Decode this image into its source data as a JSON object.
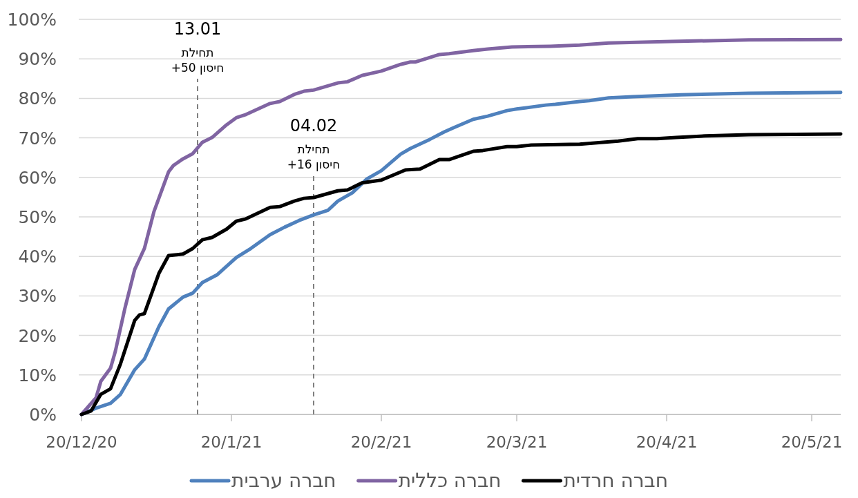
{
  "chart_data": {
    "type": "line",
    "xlim": [
      "2020-12-20",
      "2021-05-26"
    ],
    "xticks": [
      {
        "value": "2020-12-20",
        "label": "20/12/20"
      },
      {
        "value": "2021-01-20",
        "label": "20/1/21"
      },
      {
        "value": "2021-02-20",
        "label": "20/2/21"
      },
      {
        "value": "2021-03-20",
        "label": "20/3/21"
      },
      {
        "value": "2021-04-20",
        "label": "20/4/21"
      },
      {
        "value": "2021-05-20",
        "label": "20/5/21"
      }
    ],
    "ylim": [
      0,
      100
    ],
    "yticks": [
      {
        "value": 0,
        "label": "0%"
      },
      {
        "value": 10,
        "label": "10%"
      },
      {
        "value": 20,
        "label": "20%"
      },
      {
        "value": 30,
        "label": "30%"
      },
      {
        "value": 40,
        "label": "40%"
      },
      {
        "value": 50,
        "label": "50%"
      },
      {
        "value": 60,
        "label": "60%"
      },
      {
        "value": 70,
        "label": "70%"
      },
      {
        "value": 80,
        "label": "80%"
      },
      {
        "value": 90,
        "label": "90%"
      },
      {
        "value": 100,
        "label": "100%"
      }
    ],
    "grid": "y",
    "legend": "bottom",
    "series": [
      {
        "name": "חברה ערבית",
        "color": "#4f81bd",
        "x": [
          "2020-12-20",
          "2020-12-23",
          "2020-12-26",
          "2020-12-28",
          "2020-12-31",
          "2021-01-02",
          "2021-01-05",
          "2021-01-07",
          "2021-01-10",
          "2021-01-12",
          "2021-01-14",
          "2021-01-17",
          "2021-01-21",
          "2021-01-24",
          "2021-01-28",
          "2021-01-31",
          "2021-02-03",
          "2021-02-06",
          "2021-02-09",
          "2021-02-11",
          "2021-02-14",
          "2021-02-17",
          "2021-02-20",
          "2021-02-24",
          "2021-02-26",
          "2021-03-02",
          "2021-03-05",
          "2021-03-07",
          "2021-03-11",
          "2021-03-14",
          "2021-03-18",
          "2021-03-20",
          "2021-03-26",
          "2021-03-28",
          "2021-04-02",
          "2021-04-04",
          "2021-04-08",
          "2021-04-13",
          "2021-04-23",
          "2021-05-07",
          "2021-05-26"
        ],
        "values": [
          0,
          1.6,
          2.8,
          5,
          11.3,
          14,
          22.2,
          26.7,
          29.7,
          30.7,
          33.4,
          35.3,
          39.7,
          42,
          45.5,
          47.4,
          49.1,
          50.5,
          51.7,
          54,
          56.1,
          59.6,
          61.7,
          65.9,
          67.3,
          69.6,
          71.5,
          72.6,
          74.7,
          75.5,
          76.9,
          77.3,
          78.3,
          78.5,
          79.2,
          79.4,
          80.1,
          80.4,
          80.9,
          81.3,
          81.5
        ]
      },
      {
        "name": "חברה כללית",
        "color": "#8064a2",
        "x": [
          "2020-12-20",
          "2020-12-23",
          "2020-12-24",
          "2020-12-26",
          "2020-12-27",
          "2020-12-29",
          "2020-12-31",
          "2021-01-02",
          "2021-01-04",
          "2021-01-07",
          "2021-01-08",
          "2021-01-10",
          "2021-01-12",
          "2021-01-14",
          "2021-01-16",
          "2021-01-19",
          "2021-01-21",
          "2021-01-23",
          "2021-01-28",
          "2021-01-30",
          "2021-02-02",
          "2021-02-04",
          "2021-02-06",
          "2021-02-11",
          "2021-02-13",
          "2021-02-16",
          "2021-02-20",
          "2021-02-24",
          "2021-02-26",
          "2021-02-27",
          "2021-03-04",
          "2021-03-06",
          "2021-03-11",
          "2021-03-14",
          "2021-03-19",
          "2021-03-27",
          "2021-04-02",
          "2021-04-08",
          "2021-04-21",
          "2021-05-07",
          "2021-05-26"
        ],
        "values": [
          0,
          4.2,
          8.4,
          11.7,
          16,
          27,
          36.7,
          42,
          51.4,
          61.4,
          63,
          64.7,
          66,
          68.9,
          70.1,
          73.3,
          75.1,
          75.9,
          78.7,
          79.2,
          81,
          81.8,
          82.1,
          83.9,
          84.2,
          85.8,
          86.9,
          88.6,
          89.2,
          89.2,
          91.1,
          91.3,
          92.1,
          92.5,
          93,
          93.2,
          93.5,
          94,
          94.4,
          94.8,
          94.9
        ]
      },
      {
        "name": "חברה חרדית",
        "color": "#000000",
        "x": [
          "2020-12-20",
          "2020-12-22",
          "2020-12-24",
          "2020-12-26",
          "2020-12-28",
          "2020-12-31",
          "2021-01-01",
          "2021-01-02",
          "2021-01-05",
          "2021-01-07",
          "2021-01-10",
          "2021-01-12",
          "2021-01-14",
          "2021-01-16",
          "2021-01-19",
          "2021-01-21",
          "2021-01-23",
          "2021-01-28",
          "2021-01-30",
          "2021-02-02",
          "2021-02-04",
          "2021-02-06",
          "2021-02-11",
          "2021-02-13",
          "2021-02-16",
          "2021-02-20",
          "2021-02-25",
          "2021-02-28",
          "2021-03-04",
          "2021-03-06",
          "2021-03-11",
          "2021-03-13",
          "2021-03-18",
          "2021-03-20",
          "2021-03-23",
          "2021-04-02",
          "2021-04-10",
          "2021-04-14",
          "2021-04-18",
          "2021-04-22",
          "2021-04-28",
          "2021-05-07",
          "2021-05-26"
        ],
        "values": [
          0,
          0.9,
          5.1,
          6.5,
          12.6,
          23.8,
          25.2,
          25.5,
          35.7,
          40.2,
          40.6,
          42,
          44.2,
          44.8,
          46.9,
          48.9,
          49.5,
          52.4,
          52.6,
          54,
          54.7,
          54.9,
          56.6,
          56.8,
          58.6,
          59.3,
          61.9,
          62.1,
          64.5,
          64.5,
          66.6,
          66.8,
          67.8,
          67.8,
          68.2,
          68.4,
          69.2,
          69.8,
          69.8,
          70.1,
          70.5,
          70.8,
          71
        ]
      }
    ],
    "ref_lines": [
      {
        "axis": "x",
        "value": "2021-01-13",
        "label": "13.01\nתחילת\nחיסון 50+",
        "color": "#7f7f7f",
        "line_style": "dashed"
      },
      {
        "axis": "x",
        "value": "2021-02-06",
        "label": "04.02\nתחילת\nחיסון 16+",
        "color": "#7f7f7f",
        "line_style": "dashed"
      }
    ]
  }
}
